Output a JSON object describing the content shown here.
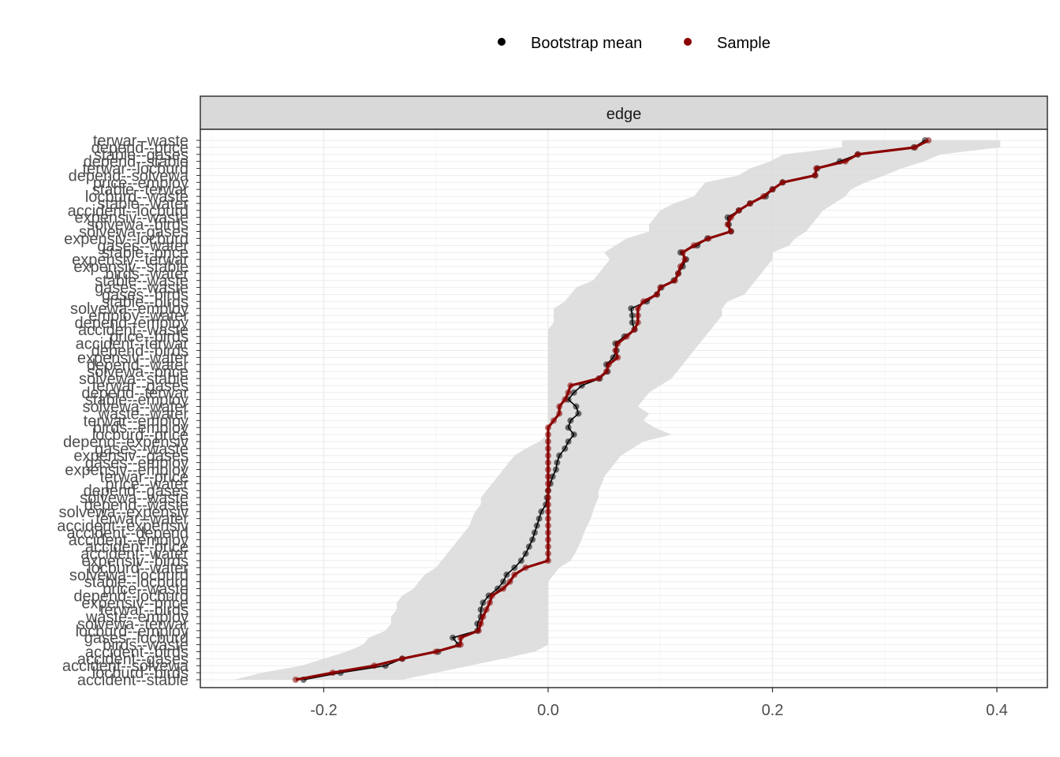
{
  "chart_data": {
    "type": "line",
    "facet_label": "edge",
    "xlim": [
      -0.31,
      0.445
    ],
    "x_ticks": [
      -0.2,
      0.0,
      0.2,
      0.4
    ],
    "x_tick_labels": [
      "-0.2",
      "0.0",
      "0.2",
      "0.4"
    ],
    "grid": true,
    "legend_position": "top",
    "legend": [
      {
        "name": "Bootstrap mean",
        "color": "#000000"
      },
      {
        "name": "Sample",
        "color": "#8b0000"
      }
    ],
    "colors": {
      "bootstrap": "#000000",
      "sample": "#8b0000",
      "band": "#d9d9d9",
      "strip": "#d9d9d9"
    },
    "edges": [
      {
        "label": "terwar--waste",
        "sample": 0.339,
        "boot": 0.336,
        "lower": 0.262,
        "upper": 0.403
      },
      {
        "label": "depend--price",
        "sample": 0.327,
        "boot": 0.326,
        "lower": 0.262,
        "upper": 0.403
      },
      {
        "label": "stable--gases",
        "sample": 0.276,
        "boot": 0.276,
        "lower": 0.21,
        "upper": 0.35
      },
      {
        "label": "depend--stable",
        "sample": 0.265,
        "boot": 0.26,
        "lower": 0.198,
        "upper": 0.335
      },
      {
        "label": "terwar--locburd",
        "sample": 0.239,
        "boot": 0.24,
        "lower": 0.18,
        "upper": 0.315
      },
      {
        "label": "depend--solvewa",
        "sample": 0.238,
        "boot": 0.238,
        "lower": 0.17,
        "upper": 0.3
      },
      {
        "label": "price--employ",
        "sample": 0.209,
        "boot": 0.209,
        "lower": 0.14,
        "upper": 0.283
      },
      {
        "label": "stable--terwar",
        "sample": 0.2,
        "boot": 0.2,
        "lower": 0.135,
        "upper": 0.27
      },
      {
        "label": "locburd--waste",
        "sample": 0.192,
        "boot": 0.194,
        "lower": 0.13,
        "upper": 0.265
      },
      {
        "label": "stable--water",
        "sample": 0.18,
        "boot": 0.18,
        "lower": 0.112,
        "upper": 0.255
      },
      {
        "label": "accident--locburd",
        "sample": 0.17,
        "boot": 0.17,
        "lower": 0.1,
        "upper": 0.245
      },
      {
        "label": "expensiv--waste",
        "sample": 0.163,
        "boot": 0.16,
        "lower": 0.095,
        "upper": 0.24
      },
      {
        "label": "solvewa--birds",
        "sample": 0.16,
        "boot": 0.161,
        "lower": 0.09,
        "upper": 0.235
      },
      {
        "label": "solvewa--gases",
        "sample": 0.163,
        "boot": 0.163,
        "lower": 0.09,
        "upper": 0.23
      },
      {
        "label": "expensiv--locburd",
        "sample": 0.143,
        "boot": 0.142,
        "lower": 0.07,
        "upper": 0.22
      },
      {
        "label": "gases--water",
        "sample": 0.13,
        "boot": 0.133,
        "lower": 0.06,
        "upper": 0.215
      },
      {
        "label": "stable--price",
        "sample": 0.12,
        "boot": 0.118,
        "lower": 0.05,
        "upper": 0.2
      },
      {
        "label": "expensiv--terwar",
        "sample": 0.122,
        "boot": 0.123,
        "lower": 0.055,
        "upper": 0.2
      },
      {
        "label": "expensiv--stable",
        "sample": 0.118,
        "boot": 0.12,
        "lower": 0.05,
        "upper": 0.195
      },
      {
        "label": "birds--water",
        "sample": 0.116,
        "boot": 0.116,
        "lower": 0.045,
        "upper": 0.19
      },
      {
        "label": "stable--waste",
        "sample": 0.113,
        "boot": 0.112,
        "lower": 0.04,
        "upper": 0.185
      },
      {
        "label": "gases--waste",
        "sample": 0.1,
        "boot": 0.101,
        "lower": 0.025,
        "upper": 0.18
      },
      {
        "label": "gases--birds",
        "sample": 0.097,
        "boot": 0.097,
        "lower": 0.02,
        "upper": 0.175
      },
      {
        "label": "stable--birds",
        "sample": 0.085,
        "boot": 0.088,
        "lower": 0.015,
        "upper": 0.16
      },
      {
        "label": "solvewa--employ",
        "sample": 0.08,
        "boot": 0.074,
        "lower": 0.005,
        "upper": 0.155
      },
      {
        "label": "employ--water",
        "sample": 0.08,
        "boot": 0.075,
        "lower": 0.005,
        "upper": 0.155
      },
      {
        "label": "depend--employ",
        "sample": 0.08,
        "boot": 0.075,
        "lower": 0.005,
        "upper": 0.15
      },
      {
        "label": "accident--waste",
        "sample": 0.077,
        "boot": 0.077,
        "lower": 0.0,
        "upper": 0.145
      },
      {
        "label": "price--birds",
        "sample": 0.07,
        "boot": 0.068,
        "lower": 0.0,
        "upper": 0.14
      },
      {
        "label": "accident--terwar",
        "sample": 0.062,
        "boot": 0.06,
        "lower": 0.0,
        "upper": 0.135
      },
      {
        "label": "depend--birds",
        "sample": 0.06,
        "boot": 0.061,
        "lower": 0.0,
        "upper": 0.13
      },
      {
        "label": "expensiv--water",
        "sample": 0.062,
        "boot": 0.058,
        "lower": 0.0,
        "upper": 0.125
      },
      {
        "label": "depend--water",
        "sample": 0.054,
        "boot": 0.052,
        "lower": 0.0,
        "upper": 0.12
      },
      {
        "label": "solvewa--price",
        "sample": 0.052,
        "boot": 0.053,
        "lower": 0.0,
        "upper": 0.115
      },
      {
        "label": "solvewa--stable",
        "sample": 0.045,
        "boot": 0.046,
        "lower": 0.0,
        "upper": 0.11
      },
      {
        "label": "terwar--gases",
        "sample": 0.02,
        "boot": 0.03,
        "lower": 0.0,
        "upper": 0.1
      },
      {
        "label": "depend--terwar",
        "sample": 0.018,
        "boot": 0.023,
        "lower": 0.0,
        "upper": 0.09
      },
      {
        "label": "stable--employ",
        "sample": 0.015,
        "boot": 0.018,
        "lower": 0.0,
        "upper": 0.085
      },
      {
        "label": "solvewa--water",
        "sample": 0.01,
        "boot": 0.025,
        "lower": 0.0,
        "upper": 0.08
      },
      {
        "label": "waste--water",
        "sample": 0.01,
        "boot": 0.027,
        "lower": 0.0,
        "upper": 0.09
      },
      {
        "label": "terwar--employ",
        "sample": 0.005,
        "boot": 0.02,
        "lower": 0.0,
        "upper": 0.085
      },
      {
        "label": "birds--employ",
        "sample": 0.0,
        "boot": 0.018,
        "lower": 0.0,
        "upper": 0.095
      },
      {
        "label": "locburd--price",
        "sample": 0.0,
        "boot": 0.023,
        "lower": 0.0,
        "upper": 0.11
      },
      {
        "label": "depend--expensiv",
        "sample": 0.0,
        "boot": 0.018,
        "lower": -0.008,
        "upper": 0.085
      },
      {
        "label": "gases--waste",
        "sample": 0.0,
        "boot": 0.015,
        "lower": -0.02,
        "upper": 0.075
      },
      {
        "label": "expensiv--gases",
        "sample": 0.0,
        "boot": 0.01,
        "lower": -0.03,
        "upper": 0.065
      },
      {
        "label": "gases--employ",
        "sample": 0.0,
        "boot": 0.008,
        "lower": -0.035,
        "upper": 0.06
      },
      {
        "label": "expensiv--employ",
        "sample": 0.0,
        "boot": 0.007,
        "lower": -0.04,
        "upper": 0.055
      },
      {
        "label": "terwar--price",
        "sample": 0.0,
        "boot": 0.004,
        "lower": -0.045,
        "upper": 0.05
      },
      {
        "label": "price--water",
        "sample": 0.0,
        "boot": 0.002,
        "lower": -0.05,
        "upper": 0.048
      },
      {
        "label": "depend--gases",
        "sample": 0.0,
        "boot": 0.0,
        "lower": -0.055,
        "upper": 0.045
      },
      {
        "label": "solvewa--waste",
        "sample": 0.0,
        "boot": -0.001,
        "lower": -0.06,
        "upper": 0.045
      },
      {
        "label": "depend--waste",
        "sample": 0.0,
        "boot": -0.002,
        "lower": -0.06,
        "upper": 0.042
      },
      {
        "label": "solvewa--expensiv",
        "sample": 0.0,
        "boot": -0.006,
        "lower": -0.065,
        "upper": 0.04
      },
      {
        "label": "terwar--water",
        "sample": 0.0,
        "boot": -0.008,
        "lower": -0.068,
        "upper": 0.038
      },
      {
        "label": "accident--expensiv",
        "sample": 0.0,
        "boot": -0.01,
        "lower": -0.07,
        "upper": 0.035
      },
      {
        "label": "accident--depend",
        "sample": 0.0,
        "boot": -0.012,
        "lower": -0.075,
        "upper": 0.032
      },
      {
        "label": "accident--employ",
        "sample": 0.0,
        "boot": -0.014,
        "lower": -0.08,
        "upper": 0.03
      },
      {
        "label": "accident--price",
        "sample": 0.0,
        "boot": -0.017,
        "lower": -0.085,
        "upper": 0.027
      },
      {
        "label": "accident--water",
        "sample": 0.0,
        "boot": -0.02,
        "lower": -0.09,
        "upper": 0.024
      },
      {
        "label": "expensiv--birds",
        "sample": 0.0,
        "boot": -0.024,
        "lower": -0.095,
        "upper": 0.02
      },
      {
        "label": "locburd--water",
        "sample": -0.02,
        "boot": -0.03,
        "lower": -0.1,
        "upper": 0.01
      },
      {
        "label": "solvewa--locburd",
        "sample": -0.03,
        "boot": -0.037,
        "lower": -0.11,
        "upper": 0.005
      },
      {
        "label": "stable--locburd",
        "sample": -0.034,
        "boot": -0.04,
        "lower": -0.115,
        "upper": 0.0
      },
      {
        "label": "price--waste",
        "sample": -0.04,
        "boot": -0.045,
        "lower": -0.12,
        "upper": 0.0
      },
      {
        "label": "depend--locburd",
        "sample": -0.05,
        "boot": -0.053,
        "lower": -0.13,
        "upper": 0.0
      },
      {
        "label": "expensiv--price",
        "sample": -0.052,
        "boot": -0.058,
        "lower": -0.135,
        "upper": 0.0
      },
      {
        "label": "terwar--birds",
        "sample": -0.055,
        "boot": -0.06,
        "lower": -0.135,
        "upper": 0.0
      },
      {
        "label": "waste--employ",
        "sample": -0.058,
        "boot": -0.06,
        "lower": -0.14,
        "upper": 0.0
      },
      {
        "label": "solvewa--terwar",
        "sample": -0.06,
        "boot": -0.063,
        "lower": -0.14,
        "upper": 0.0
      },
      {
        "label": "locburd--employ",
        "sample": -0.062,
        "boot": -0.063,
        "lower": -0.145,
        "upper": 0.0
      },
      {
        "label": "gases--locburd",
        "sample": -0.078,
        "boot": -0.085,
        "lower": -0.16,
        "upper": 0.0
      },
      {
        "label": "birds--waste",
        "sample": -0.078,
        "boot": -0.08,
        "lower": -0.165,
        "upper": 0.0
      },
      {
        "label": "accident--birds",
        "sample": -0.1,
        "boot": -0.098,
        "lower": -0.18,
        "upper": -0.012
      },
      {
        "label": "accident--gases",
        "sample": -0.13,
        "boot": -0.13,
        "lower": -0.2,
        "upper": -0.04
      },
      {
        "label": "accident--solvewa",
        "sample": -0.155,
        "boot": -0.145,
        "lower": -0.22,
        "upper": -0.07
      },
      {
        "label": "locburd--birds",
        "sample": -0.192,
        "boot": -0.185,
        "lower": -0.255,
        "upper": -0.1
      },
      {
        "label": "accident--stable",
        "sample": -0.225,
        "boot": -0.218,
        "lower": -0.28,
        "upper": -0.13
      }
    ]
  }
}
